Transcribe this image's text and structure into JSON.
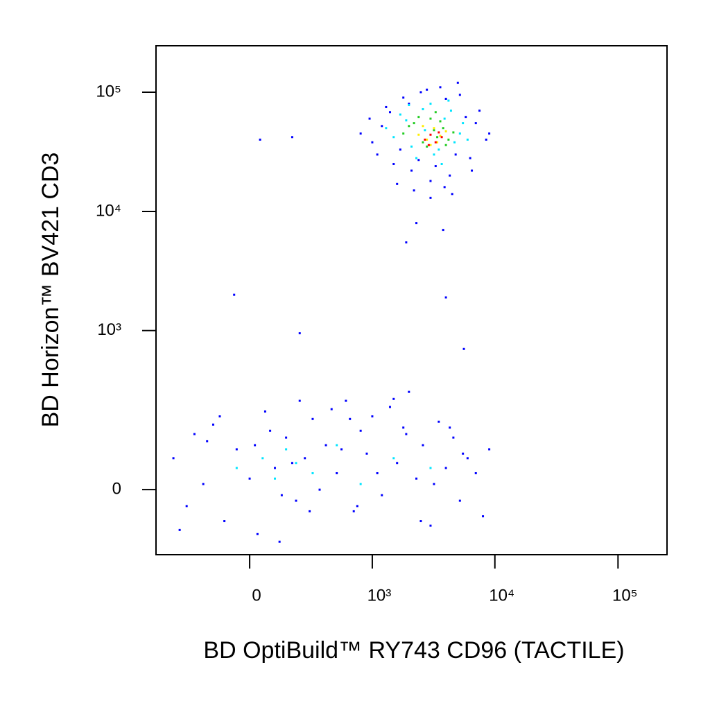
{
  "chart_data": {
    "type": "scatter",
    "x_label": "BD OptiBuild™ RY743 CD96 (TACTILE)",
    "y_label": "BD Horizon™ BV421 CD3",
    "x_scale": "biexponential",
    "y_scale": "biexponential",
    "xlim": [
      -570,
      250000
    ],
    "ylim": [
      -150,
      245000
    ],
    "xticks": [
      0,
      {
        "value": 1000,
        "label": "10³"
      },
      {
        "value": 10000,
        "label": "10⁴"
      },
      {
        "value": 100000,
        "label": "10⁵"
      }
    ],
    "yticks": [
      0,
      {
        "value": 1000,
        "label": "10³"
      },
      {
        "value": 10000,
        "label": "10⁴"
      },
      {
        "value": 100000,
        "label": "10⁵"
      }
    ],
    "series": [
      {
        "color": "#0000ff",
        "x": [
          800,
          950,
          1100,
          1300,
          1500,
          1800,
          2100,
          2500,
          3000,
          3600,
          4300,
          5200,
          6300,
          7500,
          9000,
          1000,
          1200,
          1400,
          1700,
          2000,
          2400,
          2800,
          3300,
          4000,
          4800,
          5800,
          7000,
          8500,
          1600,
          2200,
          3000,
          3900,
          5000,
          6500,
          180,
          40,
          2300,
          3800,
          1900,
          4500
        ],
        "values": [
          45000,
          60000,
          30000,
          75000,
          25000,
          90000,
          22000,
          100000,
          18000,
          110000,
          20000,
          95000,
          28000,
          70000,
          45000,
          38000,
          52000,
          68000,
          33000,
          80000,
          27000,
          105000,
          24000,
          88000,
          30000,
          62000,
          55000,
          40000,
          17000,
          15000,
          13000,
          16000,
          120000,
          22000,
          42000,
          40000,
          8000,
          7000,
          5500,
          14000
        ]
      },
      {
        "color": "#0000ff",
        "x": [
          -400,
          -300,
          -250,
          -200,
          -150,
          -100,
          -50,
          0,
          30,
          60,
          100,
          150,
          200,
          250,
          300,
          350,
          400,
          500,
          600,
          700,
          800,
          900,
          1000,
          1200,
          1400,
          1600,
          1800,
          2000,
          2300,
          2600,
          3000,
          3500,
          4000,
          4600,
          5200,
          6000,
          7000,
          8000,
          9000,
          -350,
          -120,
          20,
          80,
          130,
          180,
          220,
          280,
          450,
          550,
          650,
          750,
          1100,
          1500,
          1900,
          2500,
          3200,
          4300,
          5500,
          -180,
          120,
          -60,
          220,
          5600,
          4000
        ],
        "values": [
          60,
          -30,
          120,
          10,
          150,
          -60,
          80,
          20,
          -90,
          200,
          40,
          110,
          -20,
          60,
          170,
          0,
          90,
          30,
          250,
          -40,
          130,
          70,
          180,
          -10,
          220,
          50,
          140,
          300,
          20,
          90,
          -70,
          160,
          40,
          110,
          -20,
          60,
          30,
          -50,
          80,
          -80,
          180,
          90,
          130,
          -10,
          50,
          250,
          -40,
          210,
          80,
          170,
          -30,
          30,
          260,
          120,
          -60,
          10,
          140,
          70,
          100,
          -110,
          2000,
          950,
          700,
          1900
        ]
      },
      {
        "color": "#00e5ff",
        "x": [
          -50,
          50,
          100,
          150,
          200,
          300,
          500,
          800,
          1500,
          3000
        ],
        "values": [
          40,
          60,
          20,
          80,
          50,
          30,
          90,
          10,
          60,
          40
        ]
      },
      {
        "color": "#00e5ff",
        "x": [
          1300,
          1700,
          2100,
          2600,
          3200,
          3900,
          4700,
          5500,
          1500,
          2300,
          3000,
          3700,
          4400,
          5200,
          1900,
          2700,
          3500,
          6000,
          2000,
          4200
        ],
        "values": [
          50000,
          65000,
          35000,
          72000,
          30000,
          60000,
          38000,
          55000,
          42000,
          28000,
          80000,
          25000,
          70000,
          45000,
          58000,
          48000,
          33000,
          40000,
          78000,
          85000
        ]
      },
      {
        "color": "#22cc22",
        "x": [
          1800,
          2200,
          2600,
          3000,
          3400,
          3800,
          4200,
          2400,
          2800,
          3200,
          3600,
          4000,
          2000,
          3300,
          4600
        ],
        "values": [
          45000,
          55000,
          38000,
          60000,
          42000,
          50000,
          40000,
          62000,
          35000,
          48000,
          57000,
          36000,
          52000,
          68000,
          46000
        ]
      },
      {
        "color": "#ffee00",
        "x": [
          2400,
          2800,
          3200,
          3600,
          2600,
          3000,
          3400,
          4000
        ],
        "values": [
          44000,
          40000,
          50000,
          43000,
          52000,
          36000,
          38000,
          47000
        ]
      },
      {
        "color": "#ff0000",
        "x": [
          2700,
          3000,
          3300,
          3700,
          2900,
          3500
        ],
        "values": [
          40000,
          44000,
          38000,
          42000,
          36000,
          46000
        ]
      }
    ]
  }
}
